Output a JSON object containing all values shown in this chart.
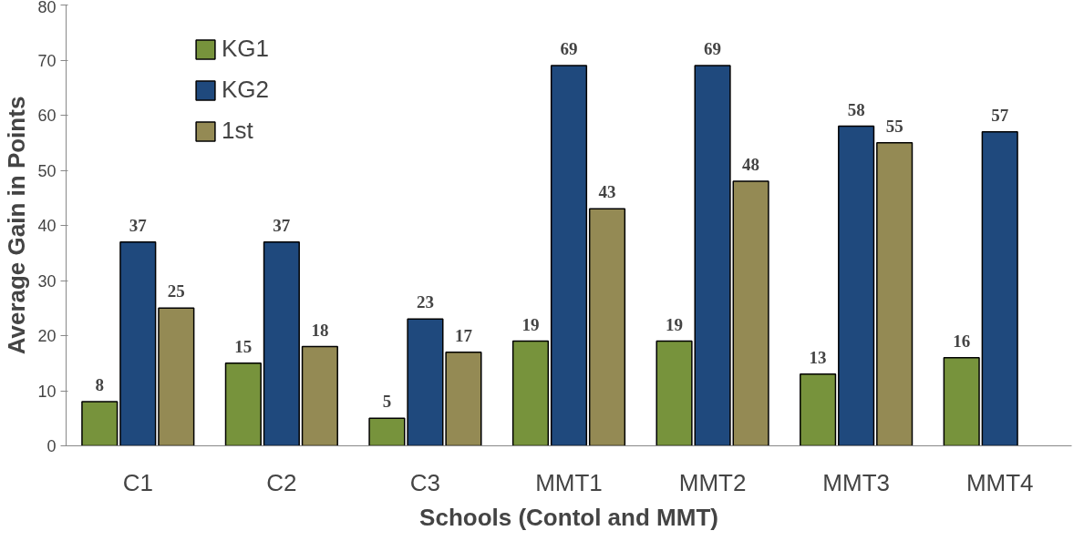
{
  "chart_data": {
    "type": "bar",
    "xlabel": "Schools (Contol and MMT)",
    "ylabel": "Average Gain in Points",
    "categories": [
      "C1",
      "C2",
      "C3",
      "MMT1",
      "MMT2",
      "MMT3",
      "MMT4"
    ],
    "series": [
      {
        "name": "KG1",
        "color": "#77933c",
        "values": [
          8,
          15,
          5,
          19,
          19,
          13,
          16
        ]
      },
      {
        "name": "KG2",
        "color": "#1f497d",
        "values": [
          37,
          37,
          23,
          69,
          69,
          58,
          57
        ]
      },
      {
        "name": "1st",
        "color": "#948a54",
        "values": [
          25,
          18,
          17,
          43,
          48,
          55,
          null
        ]
      }
    ],
    "ylim": [
      0,
      80
    ],
    "yticks": [
      0,
      10,
      20,
      30,
      40,
      50,
      60,
      70,
      80
    ],
    "data_labels": true,
    "grid": false,
    "legend": "top left"
  }
}
